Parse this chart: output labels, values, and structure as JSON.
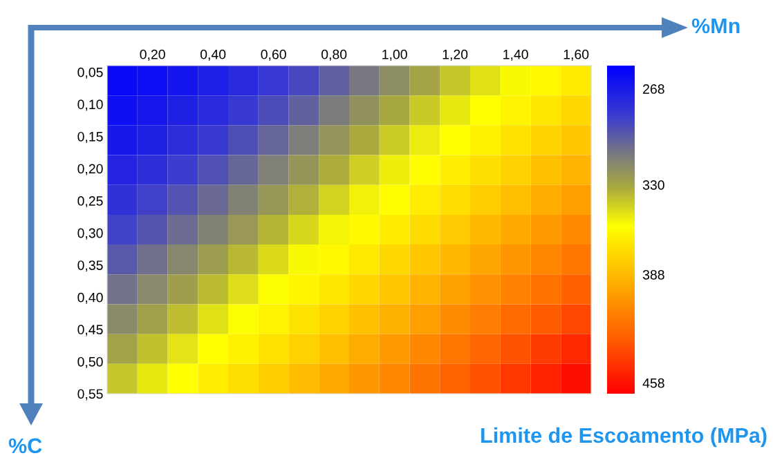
{
  "chart_data": {
    "type": "heatmap",
    "title": "Limite de Escoamento (MPa)",
    "xlabel": "%Mn",
    "ylabel": "%C",
    "xlim": [
      0.05,
      1.65
    ],
    "ylim": [
      0.55,
      0.04
    ],
    "xticks": [
      {
        "value": 0.2,
        "label": "0,20"
      },
      {
        "value": 0.4,
        "label": "0,40"
      },
      {
        "value": 0.6,
        "label": "0,60"
      },
      {
        "value": 0.8,
        "label": "0,80"
      },
      {
        "value": 1.0,
        "label": "1,00"
      },
      {
        "value": 1.2,
        "label": "1,20"
      },
      {
        "value": 1.4,
        "label": "1,40"
      },
      {
        "value": 1.6,
        "label": "1,60"
      }
    ],
    "yticks": [
      {
        "value": 0.05,
        "label": "0,05"
      },
      {
        "value": 0.1,
        "label": "0,10"
      },
      {
        "value": 0.15,
        "label": "0,15"
      },
      {
        "value": 0.2,
        "label": "0,20"
      },
      {
        "value": 0.25,
        "label": "0,25"
      },
      {
        "value": 0.3,
        "label": "0,30"
      },
      {
        "value": 0.35,
        "label": "0,35"
      },
      {
        "value": 0.4,
        "label": "0,40"
      },
      {
        "value": 0.45,
        "label": "0,45"
      },
      {
        "value": 0.5,
        "label": "0,50"
      },
      {
        "value": 0.55,
        "label": "0,55"
      }
    ],
    "clim": [
      253,
      465
    ],
    "cticks": [
      268,
      330,
      388,
      458
    ],
    "cells": [
      [
        258,
        261,
        265,
        270,
        276,
        283,
        291,
        300,
        310,
        320,
        330,
        340,
        348,
        355,
        360,
        366
      ],
      [
        262,
        266,
        271,
        277,
        284,
        292,
        301,
        311,
        321,
        331,
        341,
        350,
        357,
        362,
        368,
        374
      ],
      [
        267,
        272,
        278,
        285,
        293,
        302,
        312,
        322,
        332,
        342,
        351,
        357,
        363,
        370,
        377,
        383
      ],
      [
        273,
        279,
        286,
        294,
        303,
        313,
        323,
        333,
        343,
        352,
        358,
        364,
        371,
        378,
        385,
        391
      ],
      [
        280,
        287,
        295,
        304,
        314,
        324,
        334,
        344,
        353,
        358,
        365,
        372,
        379,
        386,
        393,
        400
      ],
      [
        288,
        296,
        305,
        315,
        325,
        335,
        345,
        354,
        359,
        366,
        373,
        380,
        388,
        395,
        402,
        409
      ],
      [
        297,
        306,
        316,
        326,
        336,
        346,
        355,
        360,
        367,
        374,
        382,
        389,
        397,
        404,
        411,
        418
      ],
      [
        307,
        317,
        327,
        337,
        347,
        356,
        361,
        368,
        375,
        383,
        391,
        398,
        406,
        413,
        420,
        428
      ],
      [
        318,
        328,
        338,
        348,
        356,
        362,
        369,
        377,
        385,
        392,
        400,
        408,
        415,
        423,
        430,
        438
      ],
      [
        329,
        339,
        349,
        357,
        363,
        370,
        378,
        386,
        394,
        402,
        410,
        418,
        426,
        434,
        442,
        450
      ],
      [
        340,
        350,
        357,
        364,
        371,
        379,
        387,
        395,
        403,
        411,
        419,
        427,
        435,
        444,
        452,
        460
      ]
    ]
  }
}
